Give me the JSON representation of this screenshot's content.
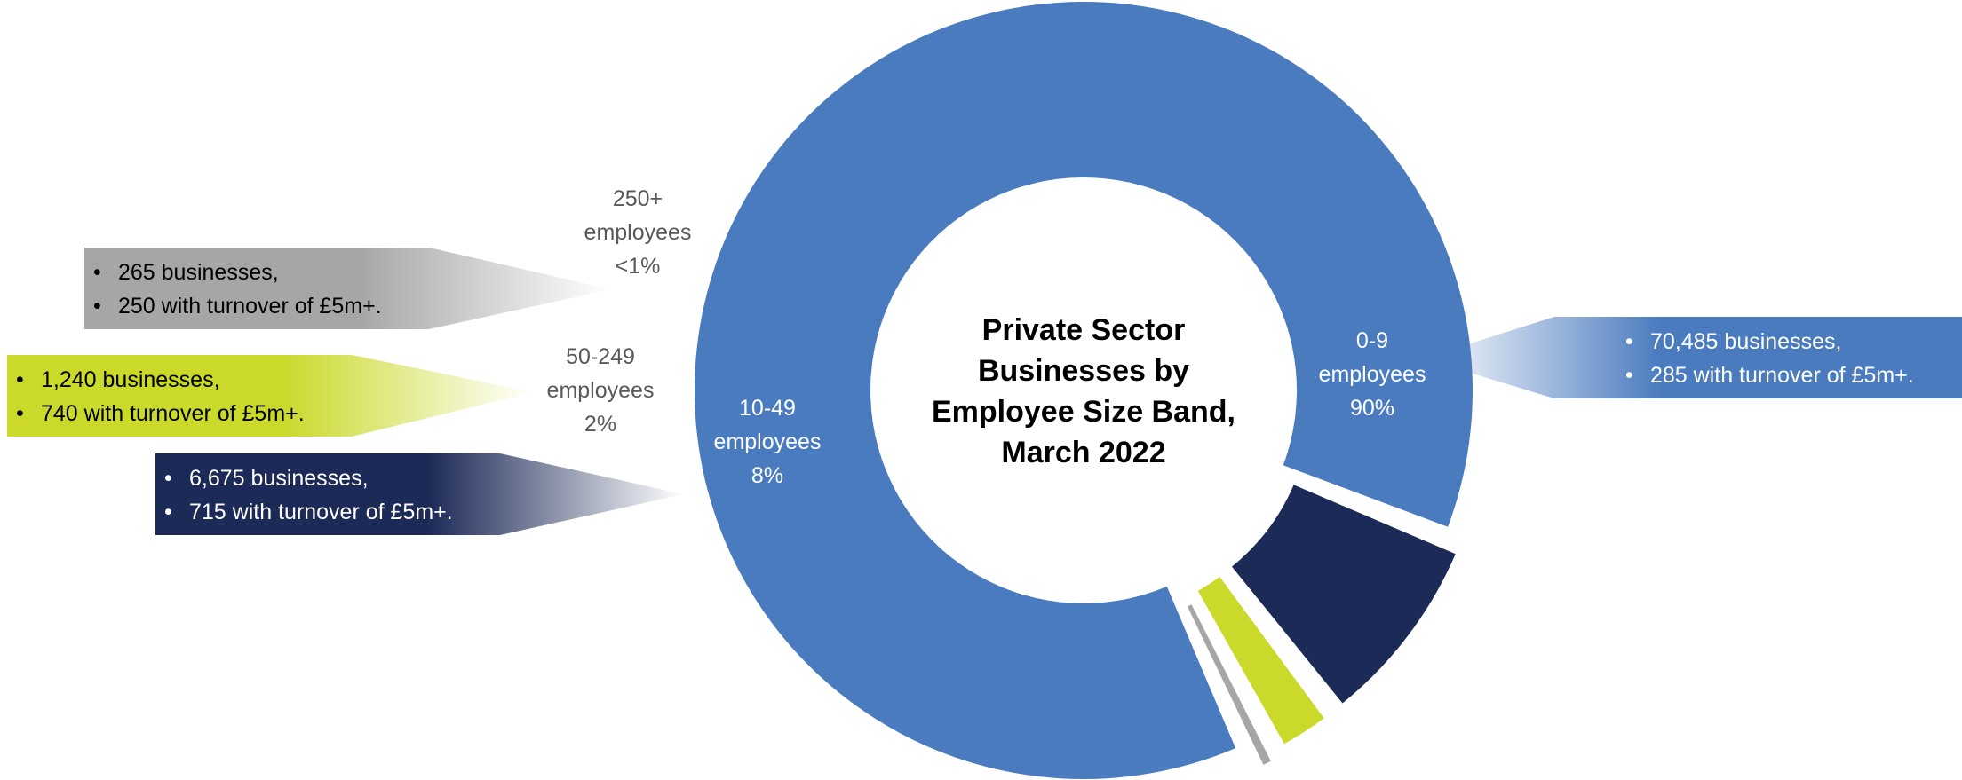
{
  "chart_data": {
    "type": "pie",
    "title": "Private Sector Businesses by Employee Size Band, March 2022",
    "title_lines": [
      "Private Sector",
      "Businesses by",
      "Employee Size Band,",
      "March 2022"
    ],
    "segments": [
      {
        "id": "0-9",
        "label_lines": [
          "0-9",
          "employees",
          "90%"
        ],
        "value": 90,
        "businesses": "70,485 businesses,",
        "turnover": "285 with turnover of £5m+.",
        "color": "#4a7bbf",
        "label_color": "#ffffff",
        "callout_text_color": "#ffffff"
      },
      {
        "id": "10-49",
        "label_lines": [
          "10-49",
          "employees",
          "8%"
        ],
        "value": 8,
        "businesses": "6,675 businesses,",
        "turnover": "715 with turnover of £5m+.",
        "color": "#1c2a57",
        "label_color": "#ffffff",
        "callout_text_color": "#ffffff"
      },
      {
        "id": "50-249",
        "label_lines": [
          "50-249",
          "employees",
          "2%"
        ],
        "value": 2,
        "businesses": "1,240 businesses,",
        "turnover": "740 with turnover of £5m+.",
        "color": "#cad92a",
        "label_color": "#595959",
        "callout_text_color": "#000000"
      },
      {
        "id": "250+",
        "label_lines": [
          "250+",
          "employees",
          "<1%"
        ],
        "value": 0.35,
        "businesses": "265 businesses,",
        "turnover": "250 with turnover of £5m+.",
        "color": "#a6a6a6",
        "label_color": "#595959",
        "callout_text_color": "#000000"
      }
    ]
  }
}
